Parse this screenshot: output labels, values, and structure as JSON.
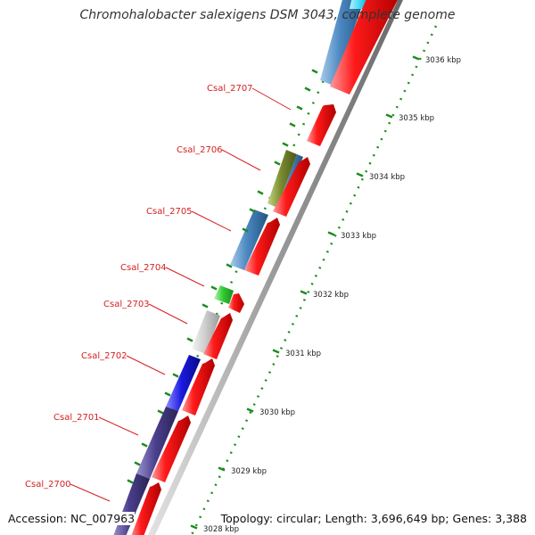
{
  "title": "Chromohalobacter salexigens DSM 3043, complete genome",
  "accession": "Accession: NC_007963",
  "summary": "Topology: circular; Length: 3,696,649 bp; Genes: 3,388",
  "colors": {
    "backbone": "#a8a8a8",
    "forward_cds": "#ee1111",
    "gene_label": "#d42020",
    "gc_dots": "#1e8c1e",
    "cog_blue": "#4a86c0",
    "cog_olive": "#7a8c2e",
    "cog_green": "#44cc44",
    "cog_grey": "#c8c8c8",
    "cog_navy": "#1a1ae0",
    "cog_purple": "#4a3f8c",
    "cog_cyan": "#22ccee"
  },
  "scale_labels": [
    "3028 kbp",
    "3029 kbp",
    "3030 kbp",
    "3031 kbp",
    "3032 kbp",
    "3033 kbp",
    "3034 kbp",
    "3035 kbp",
    "3036 kbp"
  ],
  "genes": [
    {
      "label": "Csal_2700"
    },
    {
      "label": "Csal_2701"
    },
    {
      "label": "Csal_2702"
    },
    {
      "label": "Csal_2703"
    },
    {
      "label": "Csal_2704"
    },
    {
      "label": "Csal_2705"
    },
    {
      "label": "Csal_2706"
    },
    {
      "label": "Csal_2707"
    }
  ]
}
